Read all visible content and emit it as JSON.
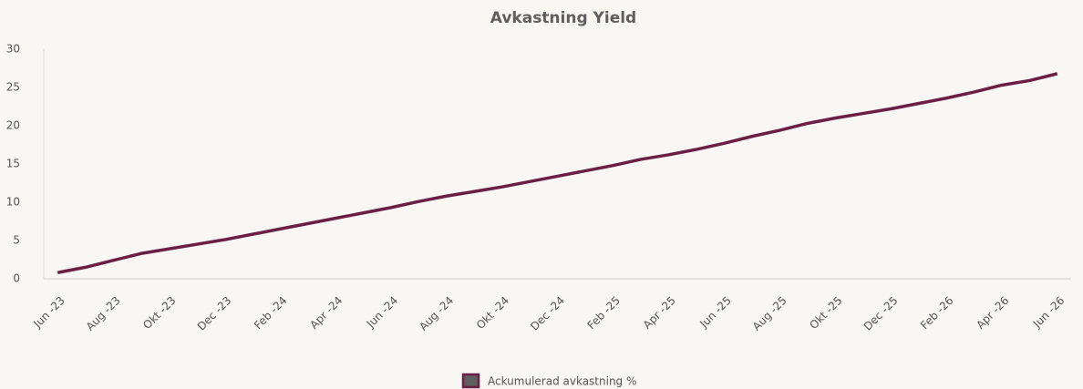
{
  "chart_data": {
    "type": "line",
    "title": "Avkastning Yield",
    "categories": [
      "Jun -23",
      null,
      "Aug -23",
      null,
      "Okt -23",
      null,
      "Dec -23",
      null,
      "Feb -24",
      null,
      "Apr -24",
      null,
      "Jun -24",
      null,
      "Aug -24",
      null,
      "Okt -24",
      null,
      "Dec -24",
      null,
      "Feb -25",
      null,
      "Apr -25",
      null,
      "Jun -25",
      null,
      "Aug -25",
      null,
      "Okt -25",
      null,
      "Dec -25",
      null,
      "Feb -26",
      null,
      "Apr -26",
      null,
      "Jun -26"
    ],
    "series": [
      {
        "name": "Ackumulerad avkastning %",
        "color": "#6b1f45",
        "values": [
          0.8,
          1.5,
          2.4,
          3.3,
          3.9,
          4.5,
          5.1,
          5.8,
          6.5,
          7.2,
          7.9,
          8.6,
          9.3,
          10.1,
          10.8,
          11.4,
          12.0,
          12.7,
          13.4,
          14.1,
          14.8,
          15.6,
          16.2,
          16.9,
          17.7,
          18.6,
          19.4,
          20.3,
          21.0,
          21.6,
          22.2,
          22.9,
          23.6,
          24.4,
          25.3,
          25.9,
          26.8
        ]
      }
    ],
    "ylim": [
      0,
      30
    ],
    "yticks": [
      0,
      5,
      10,
      15,
      20,
      25,
      30
    ],
    "grid": false,
    "legend": "bottom"
  }
}
